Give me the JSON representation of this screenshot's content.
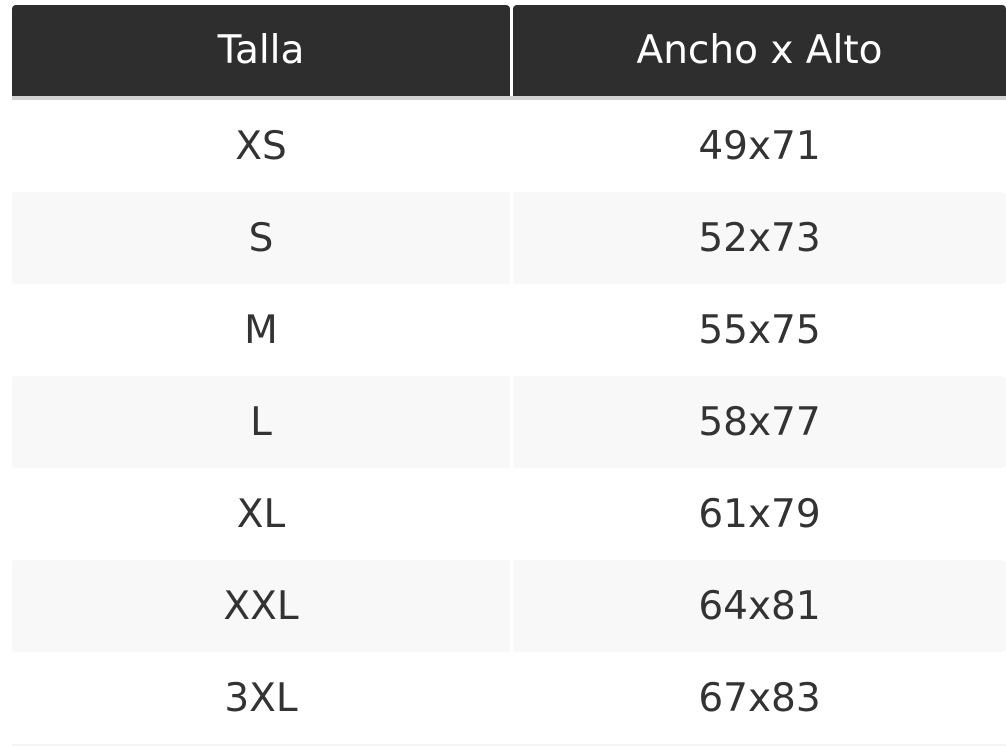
{
  "table": {
    "headers": [
      "Talla",
      "Ancho x Alto"
    ],
    "rows": [
      [
        "XS",
        "49x71"
      ],
      [
        "S",
        "52x73"
      ],
      [
        "M",
        "55x75"
      ],
      [
        "L",
        "58x77"
      ],
      [
        "XL",
        "61x79"
      ],
      [
        "XXL",
        "64x81"
      ],
      [
        "3XL",
        "67x83"
      ]
    ],
    "colors": {
      "header_bg": "#2e2e2e",
      "header_text": "#ffffff",
      "stripe": "#f8f8f8",
      "text": "#333333"
    }
  }
}
